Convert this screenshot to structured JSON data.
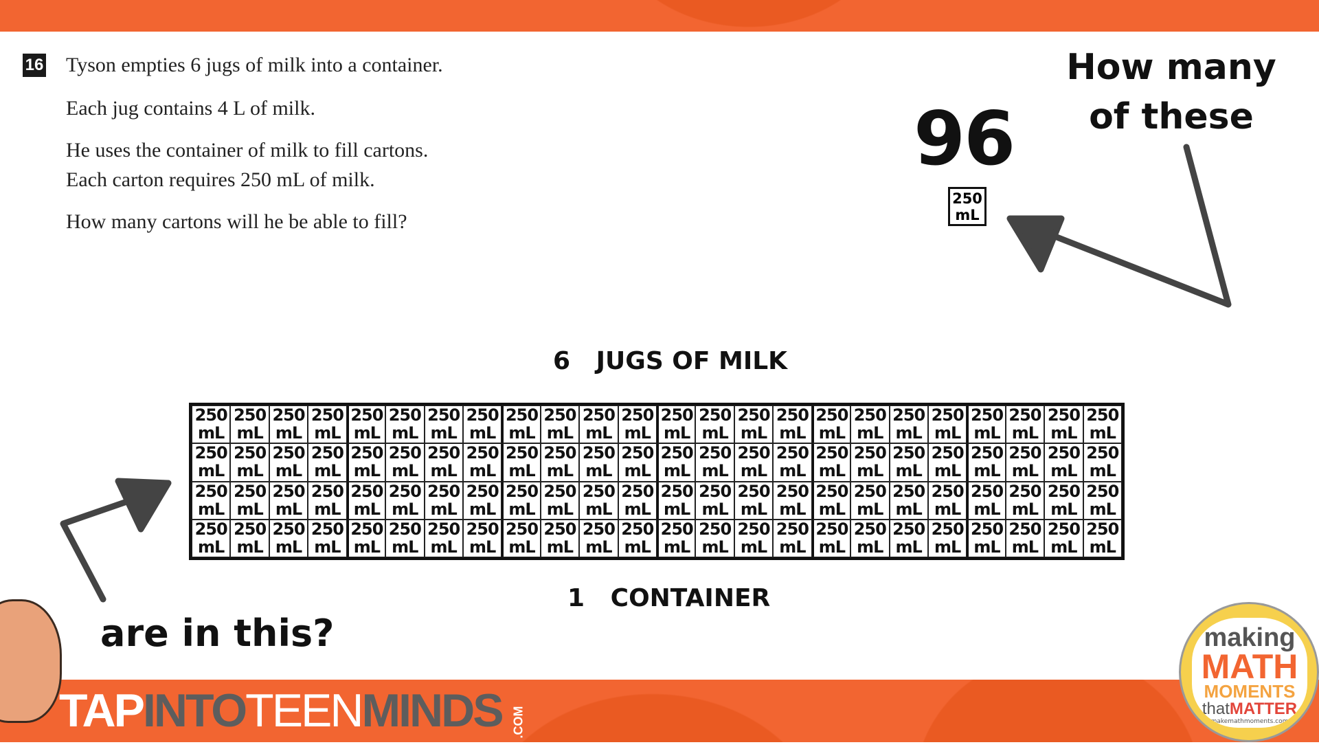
{
  "question": {
    "number": "16",
    "lines": [
      "Tyson empties 6 jugs of milk into a container.",
      "Each jug contains 4 L of milk.",
      "He uses the container of milk to fill cartons.",
      "Each carton requires 250 mL of milk.",
      "How many cartons will he be able to fill?"
    ]
  },
  "answer": "96",
  "carton": {
    "amount": "250",
    "unit": "mL"
  },
  "prompt_top": [
    "How many",
    "of these"
  ],
  "prompt_bottom": "are in this?",
  "grid": {
    "label_top": "6   JUGS OF MILK",
    "label_bottom": "1   CONTAINER",
    "rows": 4,
    "columns": 24,
    "columns_per_jug": 4
  },
  "brand": {
    "tap": "TAP",
    "into": "INTO",
    "teen": "TEEN",
    "minds": "MINDS",
    "com": ".COM"
  },
  "logo": {
    "making": "making",
    "math": "MATH",
    "moments": "MOMENTS",
    "that": "that",
    "matter": "MATTER",
    "url": "makemathmoments.com"
  },
  "colors": {
    "brand_orange": "#f26531",
    "brand_gray": "#5d5d5d",
    "logo_yellow": "#f6d04d"
  }
}
